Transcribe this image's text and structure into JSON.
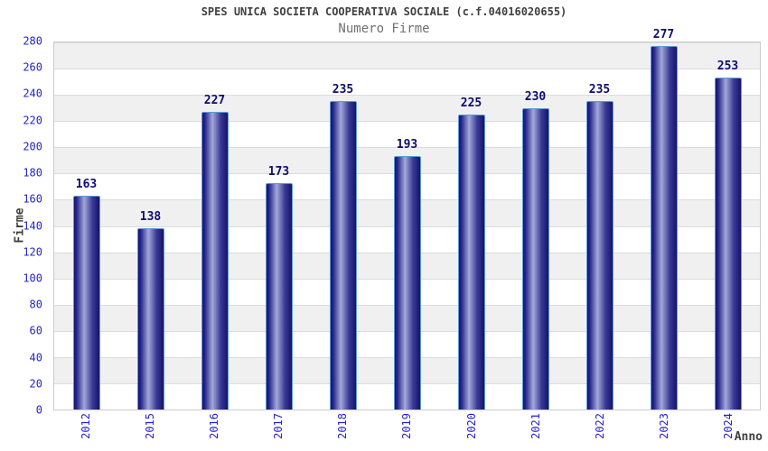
{
  "header": {
    "title": "SPES UNICA SOCIETA COOPERATIVA SOCIALE (c.f.04016020655)",
    "subtitle": "Numero Firme"
  },
  "chart_data": {
    "type": "bar",
    "title": "SPES UNICA SOCIETA COOPERATIVA SOCIALE (c.f.04016020655)",
    "subtitle": "Numero Firme",
    "categories": [
      "2012",
      "2015",
      "2016",
      "2017",
      "2018",
      "2019",
      "2020",
      "2021",
      "2022",
      "2023",
      "2024"
    ],
    "values": [
      163,
      138,
      227,
      173,
      235,
      193,
      225,
      230,
      235,
      277,
      253
    ],
    "xlabel": "Anno",
    "ylabel": "Firme",
    "ylim": [
      0,
      280
    ],
    "ytick_step": 20,
    "yticks": [
      0,
      20,
      40,
      60,
      80,
      100,
      120,
      140,
      160,
      180,
      200,
      220,
      240,
      260,
      280
    ],
    "grid": "horizontal-bands",
    "legend_position": "none"
  },
  "colors": {
    "bar_dark": "#14146e",
    "bar_highlight": "#a2a8da",
    "bar_border": "#5b9bd5",
    "value_label": "#0d0d6e",
    "tick_label": "#2424c9",
    "title": "#404040",
    "subtitle": "#707070",
    "band_gray": "#f0f0f0",
    "band_white": "#ffffff",
    "grid_line": "#dcdcdc",
    "plot_border": "#cccccc"
  }
}
